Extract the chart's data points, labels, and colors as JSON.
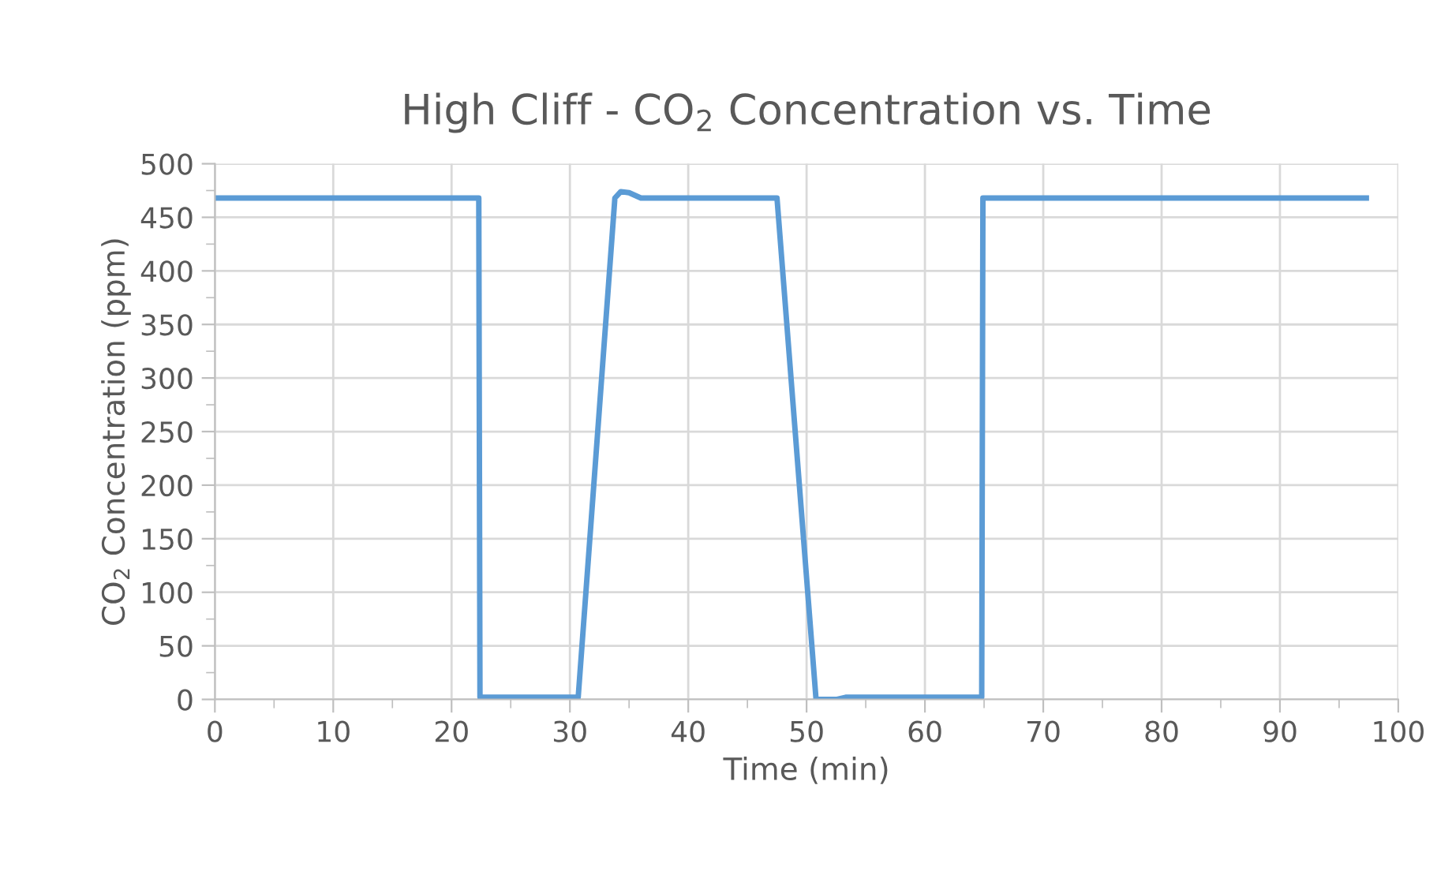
{
  "chart_data": {
    "type": "line",
    "title": "High Cliff - CO$_{2}$ Concentration vs. Time",
    "xlabel": "Time (min)",
    "ylabel": "CO$_{2}$ Concentration (ppm)",
    "x": [
      0,
      22.3,
      22.4,
      30.7,
      33.8,
      34.3,
      35.0,
      36.0,
      47.5,
      50.8,
      51.3,
      52.5,
      53.3,
      64.8,
      64.9,
      97.3
    ],
    "series": [
      {
        "color": "#5b9bd5",
        "values": [
          468,
          468,
          2,
          2,
          468,
          474,
          473,
          468,
          468,
          0,
          0,
          0,
          2,
          2,
          468,
          468
        ]
      }
    ],
    "xlim": [
      0,
      100
    ],
    "ylim": [
      0,
      500
    ],
    "xticks": [
      0,
      {
        "value": 5,
        "label": null
      },
      10,
      {
        "value": 15,
        "label": null
      },
      20,
      {
        "value": 25,
        "label": null
      },
      30,
      {
        "value": 35,
        "label": null
      },
      40,
      {
        "value": 45,
        "label": null
      },
      50,
      {
        "value": 55,
        "label": null
      },
      60,
      {
        "value": 65,
        "label": null
      },
      70,
      {
        "value": 75,
        "label": null
      },
      80,
      {
        "value": 85,
        "label": null
      },
      90,
      {
        "value": 95,
        "label": null
      },
      100
    ],
    "yticks": [
      0,
      {
        "value": 25,
        "label": null
      },
      50,
      {
        "value": 75,
        "label": null
      },
      100,
      {
        "value": 125,
        "label": null
      },
      150,
      {
        "value": 175,
        "label": null
      },
      200,
      {
        "value": 225,
        "label": null
      },
      250,
      {
        "value": 275,
        "label": null
      },
      300,
      {
        "value": 325,
        "label": null
      },
      350,
      {
        "value": 375,
        "label": null
      },
      400,
      {
        "value": 425,
        "label": null
      },
      450,
      {
        "value": 475,
        "label": null
      },
      500
    ],
    "grid": true,
    "marker": "none",
    "line_style": "solid",
    "legend": false
  }
}
